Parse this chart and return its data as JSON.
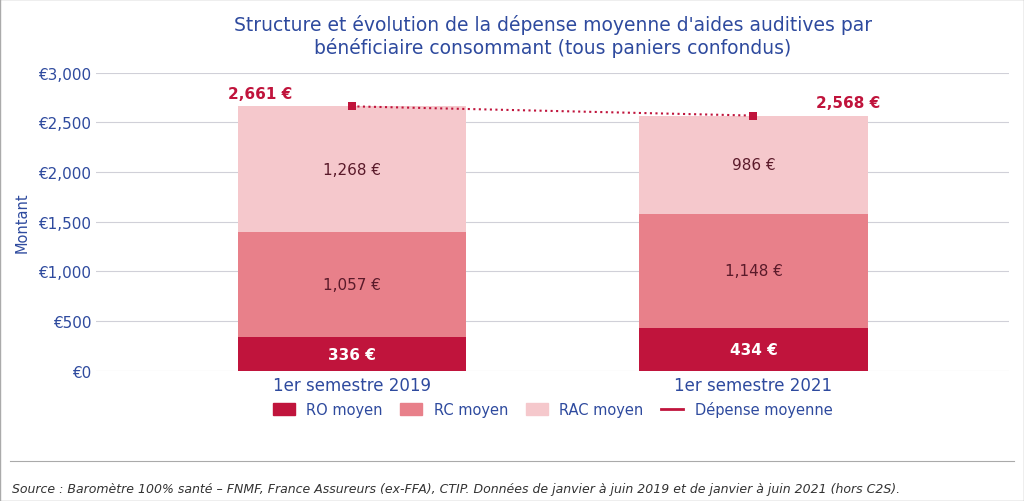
{
  "title": "Structure et évolution de la dépense moyenne d'aides auditives par\nbénéficiaire consommant (tous paniers confondus)",
  "ylabel": "Montant",
  "categories": [
    "1er semestre 2019",
    "1er semestre 2021"
  ],
  "ro_moyen": [
    336,
    434
  ],
  "rc_moyen": [
    1057,
    1148
  ],
  "rac_moyen": [
    1268,
    986
  ],
  "depense_moyenne": [
    2661,
    2568
  ],
  "ro_color": "#c0143c",
  "rc_color": "#e8808a",
  "rac_color": "#f5c8cc",
  "depense_color": "#c0143c",
  "bar_width": 0.25,
  "x_positions": [
    0.28,
    0.72
  ],
  "ylim": [
    0,
    3000
  ],
  "yticks": [
    0,
    500,
    1000,
    1500,
    2000,
    2500,
    3000
  ],
  "ytick_labels": [
    "€0",
    "€500",
    "€1,000",
    "€1,500",
    "€2,000",
    "€2,500",
    "€3,000"
  ],
  "legend_labels": [
    "RO moyen",
    "RC moyen",
    "RAC moyen",
    "Dépense moyenne"
  ],
  "source_text": "Source : Baromètre 100% santé – FNMF, France Assureurs (ex-FFA), CTIP. Données de janvier à juin 2019 et de janvier à juin 2021 (hors C2S).",
  "title_color": "#2E4A9E",
  "axis_color": "#2E4A9E",
  "background_color": "#ffffff",
  "plot_bg_color": "#ffffff",
  "grid_color": "#d0d0d8",
  "title_fontsize": 13.5,
  "label_fontsize": 10.5,
  "tick_fontsize": 11,
  "source_fontsize": 9,
  "value_fontsize": 11,
  "ro_label_color": "#ffffff",
  "rc_label_color": "#5a1a2a",
  "rac_label_color": "#5a1a2a",
  "dep_label_color": "#c0143c"
}
